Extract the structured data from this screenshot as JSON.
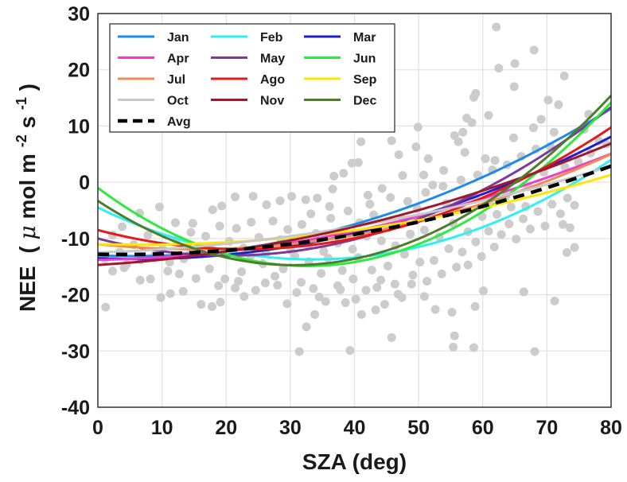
{
  "chart_data": {
    "type": "scatter",
    "xlabel": "SZA (deg)",
    "ylabel": "NEE",
    "ylabel_unit_prefix": "(",
    "ylabel_mu": "μ",
    "ylabel_unit_mid": "mol m",
    "ylabel_sup1": "-2",
    "ylabel_unit_s": "s",
    "ylabel_sup2": "-1",
    "ylabel_unit_suffix": ")",
    "xlim": [
      0,
      80
    ],
    "ylim": [
      -40,
      30
    ],
    "xticks": [
      "0",
      "10",
      "20",
      "30",
      "40",
      "50",
      "60",
      "70",
      "80"
    ],
    "yticks": [
      "-40",
      "-30",
      "-20",
      "-10",
      "0",
      "10",
      "20",
      "30"
    ],
    "grid": true,
    "legend_position": "top-left",
    "scatter_color": "#cccccc",
    "scatter_points": [
      [
        1.2,
        -22.2
      ],
      [
        9.8,
        -20.5
      ],
      [
        13.3,
        -19.4
      ],
      [
        16.1,
        -21.7
      ],
      [
        17.8,
        -22.1
      ],
      [
        19.1,
        -21.3
      ],
      [
        21.4,
        -18.8
      ],
      [
        22.8,
        -20.3
      ],
      [
        26.1,
        -17.9
      ],
      [
        29.5,
        -21.6
      ],
      [
        31.4,
        -30.1
      ],
      [
        32.5,
        -25.7
      ],
      [
        33.8,
        -23.5
      ],
      [
        35.5,
        -21.2
      ],
      [
        38.6,
        -21.4
      ],
      [
        39.3,
        -29.9
      ],
      [
        41.1,
        -23.5
      ],
      [
        43.3,
        -22.7
      ],
      [
        44.7,
        -21.7
      ],
      [
        45.8,
        -27.6
      ],
      [
        47.4,
        -20.5
      ],
      [
        50.9,
        -20.3
      ],
      [
        52.6,
        -22.6
      ],
      [
        55.2,
        -23.1
      ],
      [
        55.4,
        -29.3
      ],
      [
        55.6,
        -27.3
      ],
      [
        58.6,
        -29.4
      ],
      [
        58.8,
        -22.1
      ],
      [
        60.1,
        -19.3
      ],
      [
        66.4,
        -19.5
      ],
      [
        68.1,
        -30.1
      ],
      [
        71.2,
        -21.1
      ],
      [
        73.1,
        -12.5
      ],
      [
        74.3,
        -11.6
      ],
      [
        72.5,
        -7.5
      ],
      [
        73.6,
        -8.1
      ],
      [
        71.8,
        13.8
      ],
      [
        72.7,
        18.9
      ],
      [
        68.0,
        23.5
      ],
      [
        65.0,
        21.1
      ],
      [
        62.1,
        27.6
      ],
      [
        62.5,
        20.3
      ],
      [
        64.9,
        17.0
      ],
      [
        60.9,
        11.9
      ],
      [
        58.6,
        15.1
      ],
      [
        58.9,
        15.8
      ],
      [
        58.3,
        10.6
      ],
      [
        55.6,
        8.3
      ],
      [
        56.2,
        7.2
      ],
      [
        57.2,
        5.3
      ],
      [
        51.5,
        4.2
      ],
      [
        49.6,
        6.3
      ],
      [
        49.9,
        9.8
      ],
      [
        46.9,
        4.9
      ],
      [
        45.8,
        7.4
      ],
      [
        41.0,
        7.2
      ],
      [
        39.6,
        3.4
      ],
      [
        40.6,
        3.5
      ],
      [
        38.3,
        1.6
      ],
      [
        36.8,
        1.1
      ],
      [
        75.8,
        9.4
      ],
      [
        76.5,
        12.1
      ],
      [
        71.1,
        8.9
      ],
      [
        69.5,
        1.8
      ],
      [
        64.8,
        7.9
      ],
      [
        61.9,
        3.9
      ],
      [
        60.4,
        4.2
      ],
      [
        63.6,
        -2.5
      ],
      [
        66.7,
        -4.3
      ],
      [
        67.1,
        -0.8
      ],
      [
        53.9,
        2.1
      ],
      [
        52.2,
        -0.5
      ],
      [
        50.8,
        1.3
      ],
      [
        47.5,
        1.2
      ],
      [
        44.3,
        -1.1
      ],
      [
        42.1,
        -2.3
      ],
      [
        36.6,
        -1.2
      ],
      [
        34.2,
        -2.8
      ],
      [
        32.4,
        -3.1
      ],
      [
        30.2,
        -2.5
      ],
      [
        28.4,
        -3.3
      ],
      [
        26.3,
        -4.0
      ],
      [
        24.2,
        -2.5
      ],
      [
        21.4,
        -2.6
      ],
      [
        19.3,
        -4.2
      ],
      [
        17.9,
        -4.9
      ],
      [
        14.8,
        -7.3
      ],
      [
        12.1,
        -7.2
      ],
      [
        9.6,
        -4.4
      ],
      [
        6.5,
        -5.5
      ],
      [
        3.8,
        -7.9
      ],
      [
        2.3,
        -9.4
      ],
      [
        4.1,
        -15.2
      ],
      [
        6.6,
        -17.4
      ],
      [
        8.2,
        -17.2
      ],
      [
        10.9,
        -15.8
      ],
      [
        11.3,
        -19.8
      ],
      [
        14.2,
        -12.9
      ],
      [
        17.4,
        -15.4
      ],
      [
        19.8,
        -17.2
      ],
      [
        22.4,
        -15.9
      ],
      [
        23.8,
        -13.1
      ],
      [
        25.7,
        -14.5
      ],
      [
        27.6,
        -16.7
      ],
      [
        28.9,
        -15.4
      ],
      [
        30.1,
        -12.1
      ],
      [
        31.7,
        -17.8
      ],
      [
        32.9,
        -14.1
      ],
      [
        33.6,
        -18.9
      ],
      [
        34.8,
        -16.2
      ],
      [
        35.9,
        -13.5
      ],
      [
        37.4,
        -18.4
      ],
      [
        38.1,
        -15.7
      ],
      [
        39.8,
        -17.2
      ],
      [
        40.6,
        -13.4
      ],
      [
        41.8,
        -19.2
      ],
      [
        42.7,
        -15.6
      ],
      [
        44.1,
        -17.4
      ],
      [
        45.2,
        -14.9
      ],
      [
        46.3,
        -18.1
      ],
      [
        47.8,
        -12.8
      ],
      [
        49.1,
        -16.5
      ],
      [
        50.2,
        -14.2
      ],
      [
        51.3,
        -17.6
      ],
      [
        52.4,
        -13.9
      ],
      [
        53.6,
        -16.3
      ],
      [
        54.7,
        -11.8
      ],
      [
        55.9,
        -15.1
      ],
      [
        56.8,
        -12.4
      ],
      [
        57.7,
        -14.7
      ],
      [
        58.9,
        -10.6
      ],
      [
        59.8,
        -13.2
      ],
      [
        60.9,
        -8.7
      ],
      [
        61.8,
        -11.5
      ],
      [
        62.9,
        -9.3
      ],
      [
        64.1,
        -7.4
      ],
      [
        65.2,
        -10.1
      ],
      [
        66.3,
        -6.5
      ],
      [
        67.4,
        -8.3
      ],
      [
        68.6,
        -5.2
      ],
      [
        69.7,
        -7.8
      ],
      [
        70.8,
        -3.9
      ],
      [
        72.1,
        -5.6
      ],
      [
        73.2,
        -2.8
      ],
      [
        74.3,
        -4.1
      ],
      [
        20.5,
        -10.5
      ],
      [
        21.6,
        -8.2
      ],
      [
        22.7,
        -11.7
      ],
      [
        23.9,
        -7.1
      ],
      [
        25.1,
        -9.8
      ],
      [
        26.2,
        -12.6
      ],
      [
        27.3,
        -6.9
      ],
      [
        28.5,
        -10.2
      ],
      [
        29.6,
        -8.4
      ],
      [
        30.7,
        -13.1
      ],
      [
        31.8,
        -7.5
      ],
      [
        32.9,
        -11.2
      ],
      [
        34.0,
        -9.1
      ],
      [
        35.2,
        -12.3
      ],
      [
        36.3,
        -6.4
      ],
      [
        37.4,
        -10.8
      ],
      [
        38.5,
        -8.7
      ],
      [
        39.7,
        -11.9
      ],
      [
        40.8,
        -7.2
      ],
      [
        41.9,
        -9.6
      ],
      [
        43.0,
        -5.8
      ],
      [
        44.2,
        -10.4
      ],
      [
        45.3,
        -8.1
      ],
      [
        46.4,
        -11.3
      ],
      [
        47.5,
        -6.6
      ],
      [
        48.7,
        -9.2
      ],
      [
        49.8,
        -4.7
      ],
      [
        50.9,
        -8.5
      ],
      [
        52.0,
        -5.9
      ],
      [
        53.2,
        -9.7
      ],
      [
        54.3,
        -3.8
      ],
      [
        55.4,
        -7.3
      ],
      [
        56.5,
        -4.9
      ],
      [
        57.7,
        -8.8
      ],
      [
        58.8,
        -2.6
      ],
      [
        59.9,
        -6.1
      ],
      [
        61.0,
        -3.3
      ],
      [
        62.2,
        -5.7
      ],
      [
        63.3,
        -1.2
      ],
      [
        64.4,
        -4.4
      ],
      [
        16.8,
        -9.6
      ],
      [
        17.9,
        -12.1
      ],
      [
        19.0,
        -7.8
      ],
      [
        15.6,
        -11.4
      ],
      [
        14.5,
        -8.9
      ],
      [
        13.4,
        -13.6
      ],
      [
        12.3,
        -10.3
      ],
      [
        11.2,
        -14.2
      ],
      [
        10.1,
        -11.8
      ],
      [
        8.9,
        -12.9
      ],
      [
        7.8,
        -9.4
      ],
      [
        6.7,
        -13.8
      ],
      [
        5.6,
        -11.1
      ],
      [
        4.5,
        -14.6
      ],
      [
        3.4,
        -12.4
      ],
      [
        2.3,
        -15.8
      ],
      [
        1.1,
        -13.7
      ],
      [
        28.0,
        -18.3
      ],
      [
        31.0,
        -19.6
      ],
      [
        34.5,
        -20.4
      ],
      [
        37.8,
        -19.1
      ],
      [
        40.2,
        -20.8
      ],
      [
        43.5,
        -18.7
      ],
      [
        46.8,
        -19.9
      ],
      [
        48.9,
        -18.1
      ],
      [
        24.6,
        -19.2
      ],
      [
        21.9,
        -17.6
      ],
      [
        18.8,
        -18.4
      ],
      [
        15.3,
        -17.1
      ],
      [
        12.7,
        -16.3
      ],
      [
        33.2,
        -5.6
      ],
      [
        36.1,
        -4.3
      ],
      [
        39.0,
        -5.1
      ],
      [
        42.4,
        -3.9
      ],
      [
        45.6,
        -2.7
      ],
      [
        48.3,
        -3.4
      ],
      [
        51.1,
        -1.8
      ],
      [
        53.8,
        -0.7
      ],
      [
        56.6,
        0.4
      ],
      [
        59.2,
        1.3
      ],
      [
        61.5,
        2.2
      ],
      [
        63.8,
        3.1
      ],
      [
        66.0,
        4.6
      ],
      [
        68.3,
        5.9
      ],
      [
        70.5,
        6.4
      ],
      [
        67.9,
        9.7
      ],
      [
        69.1,
        11.2
      ],
      [
        70.2,
        14.6
      ],
      [
        57.5,
        11.4
      ],
      [
        56.9,
        8.9
      ],
      [
        72.8,
        2.7
      ],
      [
        74.9,
        3.6
      ],
      [
        76.8,
        5.2
      ],
      [
        78.1,
        7.3
      ],
      [
        79.3,
        6.8
      ]
    ],
    "series": [
      {
        "name": "Jan",
        "color": "#1e8ce6",
        "dash": false,
        "coeffs": [
          -13.0,
          -0.05,
          0.0047
        ]
      },
      {
        "name": "Feb",
        "color": "#2ef0f0",
        "dash": false,
        "coeffs": [
          -4.5,
          -0.55,
          0.0082
        ]
      },
      {
        "name": "Mar",
        "color": "#1f1fc8",
        "dash": false,
        "coeffs": [
          -13.5,
          -0.05,
          0.004
        ]
      },
      {
        "name": "Apr",
        "color": "#f03cc8",
        "dash": false,
        "coeffs": [
          -13.8,
          0.02,
          0.0027
        ]
      },
      {
        "name": "May",
        "color": "#7a3d96",
        "dash": false,
        "coeffs": [
          -10.0,
          -0.3,
          0.0074
        ]
      },
      {
        "name": "Jun",
        "color": "#2fe840",
        "dash": false,
        "coeffs": [
          -1.0,
          -0.85,
          0.013
        ]
      },
      {
        "name": "Jul",
        "color": "#f28a52",
        "dash": false,
        "coeffs": [
          -11.0,
          -0.12,
          0.004
        ]
      },
      {
        "name": "Ago",
        "color": "#e81818",
        "dash": false,
        "coeffs": [
          -8.5,
          -0.3,
          0.0066
        ]
      },
      {
        "name": "Sep",
        "color": "#ffe600",
        "dash": false,
        "coeffs": [
          -11.0,
          -0.03,
          0.0023
        ]
      },
      {
        "name": "Oct",
        "color": "#c8c8c8",
        "dash": false,
        "coeffs": [
          -12.5,
          0.04,
          0.0019
        ]
      },
      {
        "name": "Nov",
        "color": "#a0182e",
        "dash": false,
        "coeffs": [
          -14.7,
          0.07,
          0.0025
        ]
      },
      {
        "name": "Dec",
        "color": "#4f7c2a",
        "dash": false,
        "coeffs": [
          -3.3,
          -0.75,
          0.0123
        ]
      },
      {
        "name": "Avg",
        "color": "#000000",
        "dash": true,
        "coeffs": [
          -12.8,
          -0.02,
          0.0027
        ]
      }
    ]
  }
}
